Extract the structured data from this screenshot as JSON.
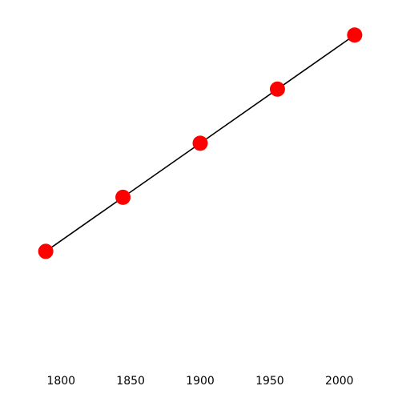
{
  "chart_data": {
    "type": "line",
    "x": [
      1789,
      1844.5,
      1900,
      1955.5,
      2011
    ],
    "y": [
      1,
      2,
      3,
      4,
      5
    ],
    "xticks": [
      1800,
      1850,
      1900,
      1950,
      2000
    ],
    "xtick_labels": [
      "1800",
      "1850",
      "1900",
      "1950",
      "2000"
    ],
    "xlim": [
      1778,
      2022
    ],
    "ylim": [
      -1,
      5.5
    ],
    "title": "",
    "xlabel": "",
    "ylabel": "",
    "grid": false,
    "line_color": "#000000",
    "marker_color": "#ff0000"
  }
}
